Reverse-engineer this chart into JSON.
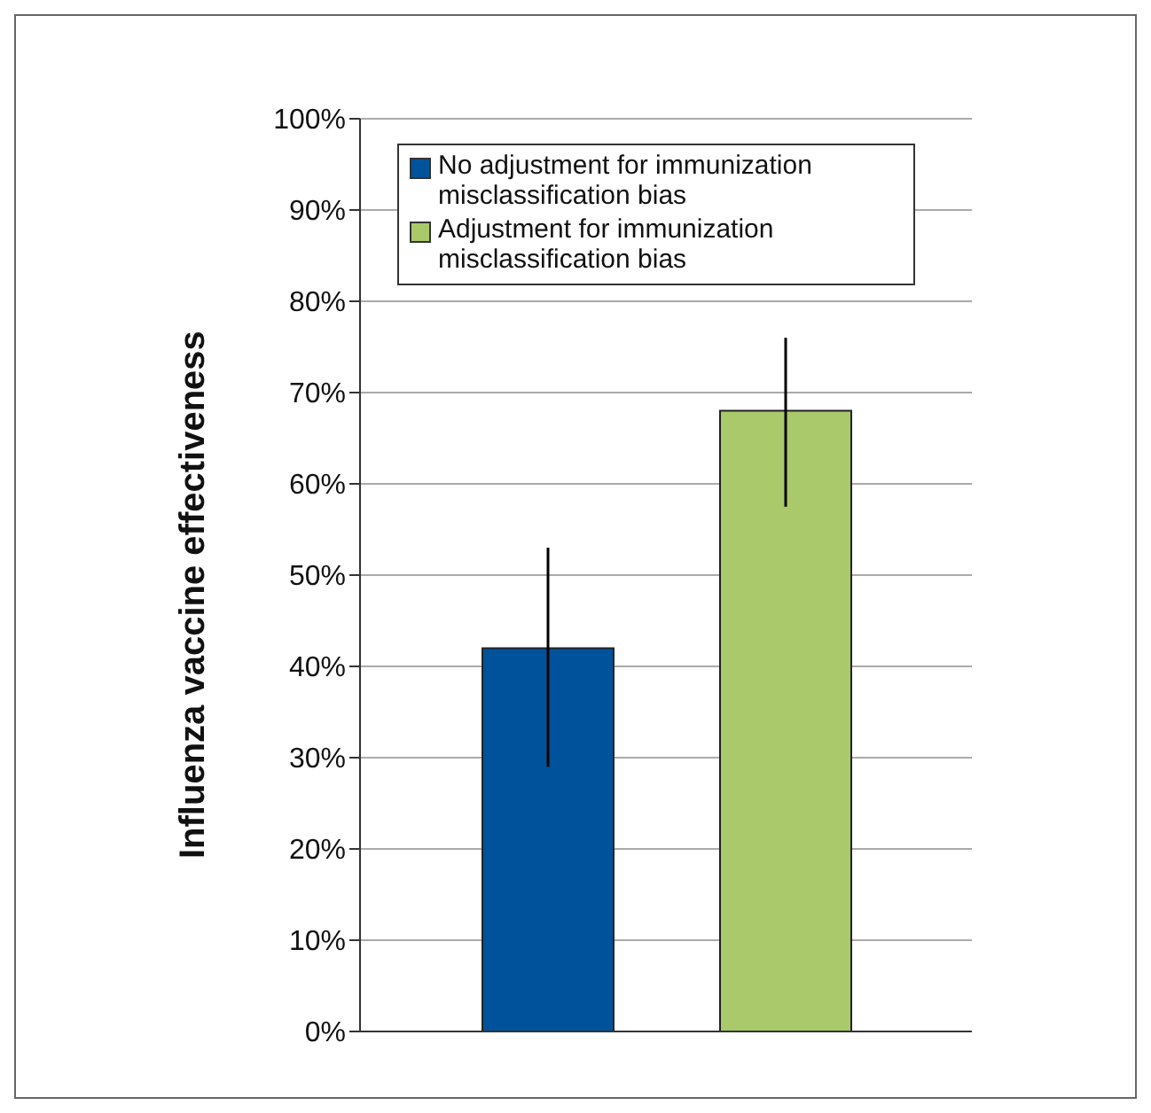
{
  "chart_data": {
    "type": "bar",
    "ylabel": "Influenza vaccine effectiveness",
    "categories": [
      null
    ],
    "series": [
      {
        "name": "No adjustment for immunization misclassification bias",
        "color": "#00539b",
        "values": [
          42
        ],
        "errors": [
          [
            29,
            53
          ]
        ]
      },
      {
        "name": "Adjustment for immunization misclassification bias",
        "color": "#a9c96a",
        "values": [
          68
        ],
        "errors": [
          [
            57.5,
            76
          ]
        ]
      }
    ],
    "ylim": [
      0,
      100
    ],
    "yticks": [
      {
        "value": 0,
        "label": "0%"
      },
      {
        "value": 10,
        "label": "10%"
      },
      {
        "value": 20,
        "label": "20%"
      },
      {
        "value": 30,
        "label": "30%"
      },
      {
        "value": 40,
        "label": "40%"
      },
      {
        "value": 50,
        "label": "50%"
      },
      {
        "value": 60,
        "label": "60%"
      },
      {
        "value": 70,
        "label": "70%"
      },
      {
        "value": 80,
        "label": "80%"
      },
      {
        "value": 90,
        "label": "90%"
      },
      {
        "value": 100,
        "label": "100%"
      }
    ],
    "grid": "y",
    "legend": "top"
  }
}
